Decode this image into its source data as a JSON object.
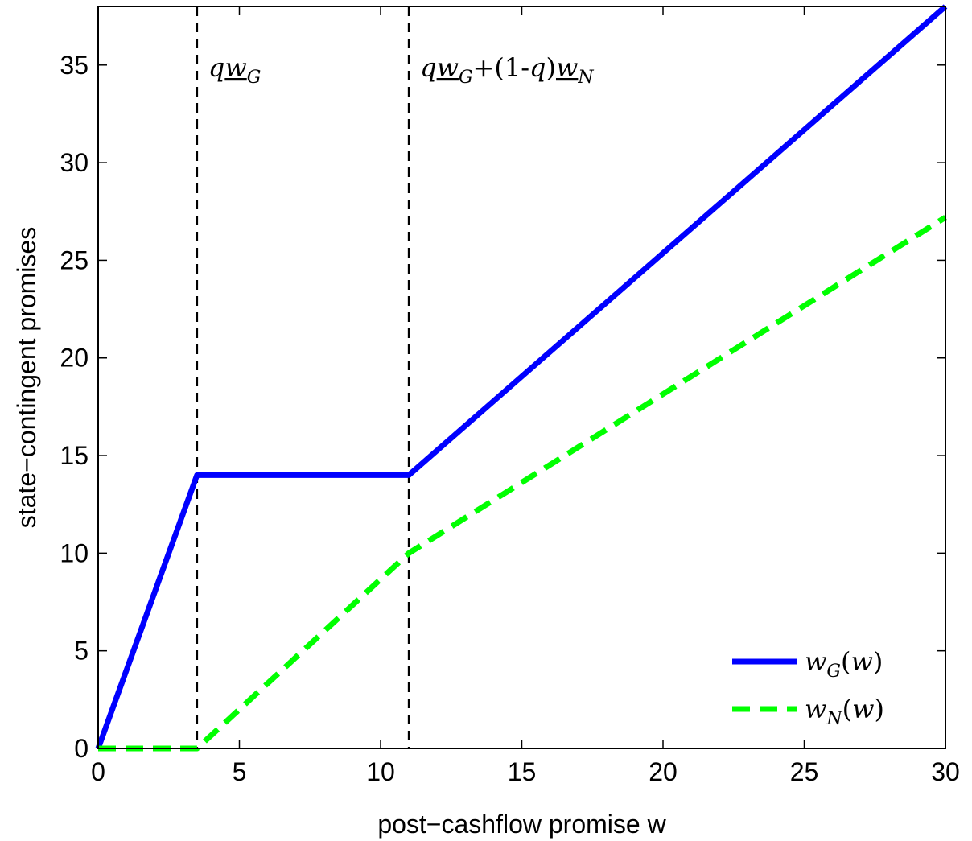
{
  "chart_data": {
    "type": "line",
    "xlabel": "post−cashflow promise w",
    "ylabel": "state−contingent promises",
    "xlim": [
      0,
      30
    ],
    "ylim": [
      0,
      38
    ],
    "xticks": [
      0,
      5,
      10,
      15,
      20,
      25,
      30
    ],
    "yticks": [
      0,
      5,
      10,
      15,
      20,
      25,
      30,
      35
    ],
    "grid": false,
    "legend_position": "bottom-right",
    "series": [
      {
        "name": "wG(w)",
        "color": "#0000ff",
        "style": "solid",
        "x": [
          0,
          3.5,
          11,
          30
        ],
        "y": [
          0,
          14,
          14,
          38
        ]
      },
      {
        "name": "wN(w)",
        "color": "#00ff00",
        "style": "dashed",
        "x": [
          0,
          3.5,
          11,
          30
        ],
        "y": [
          0,
          0,
          10,
          27.2
        ]
      }
    ],
    "vlines": [
      {
        "x": 3.5,
        "label": "qwG"
      },
      {
        "x": 11,
        "label": "qwG+(1-q)wN"
      }
    ]
  }
}
